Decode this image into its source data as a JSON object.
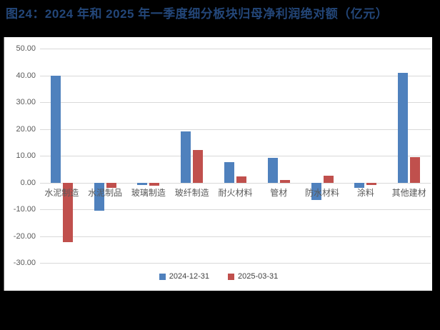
{
  "chart_data": {
    "type": "bar",
    "title": "图24：2024 年和 2025 年一季度细分板块归母净利润绝对额（亿元）",
    "title_color": "#234678",
    "categories": [
      "水泥制造",
      "水泥制品",
      "玻璃制造",
      "玻纤制造",
      "耐火材料",
      "管材",
      "防水材料",
      "涂料",
      "其他建材"
    ],
    "series": [
      {
        "name": "2024-12-31",
        "color": "#4F81BD",
        "values": [
          39.8,
          -10.4,
          -0.8,
          19.0,
          7.7,
          9.2,
          -6.6,
          -1.9,
          41.0
        ]
      },
      {
        "name": "2025-03-31",
        "color": "#C0504D",
        "values": [
          -22.2,
          -1.9,
          -1.2,
          12.2,
          2.2,
          0.9,
          2.5,
          -0.9,
          9.4
        ]
      }
    ],
    "ylim": [
      -30,
      50
    ],
    "yticks": [
      {
        "value": 50,
        "label": "50.00"
      },
      {
        "value": 40,
        "label": "40.00"
      },
      {
        "value": 30,
        "label": "30.00"
      },
      {
        "value": 20,
        "label": "20.00"
      },
      {
        "value": 10,
        "label": "10.00"
      },
      {
        "value": 0,
        "label": "0.00"
      },
      {
        "value": -10,
        "label": "-10.00"
      },
      {
        "value": -20,
        "label": "-20.00"
      },
      {
        "value": -30,
        "label": "-30.00"
      }
    ],
    "grid": true,
    "gridline_color": "#d9d9d9",
    "legend_position": "bottom",
    "panel_background": "#ffffff",
    "page_background": "#000000",
    "xlabel": "",
    "ylabel": ""
  }
}
